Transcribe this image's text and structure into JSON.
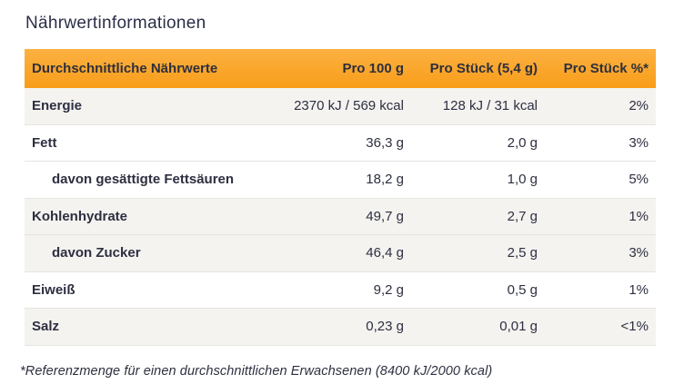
{
  "page_title": "Nährwertinformationen",
  "table": {
    "header": {
      "label": "Durchschnittliche Nährwerte",
      "per_100": "Pro 100 g",
      "per_piece": "Pro Stück (5,4 g)",
      "per_piece_pct": "Pro Stück %*"
    },
    "rows": [
      {
        "label": "Energie",
        "indent": false,
        "shaded": true,
        "per_100": "2370 kJ / 569 kcal",
        "per_piece": "128 kJ / 31 kcal",
        "pct": "2%"
      },
      {
        "label": "Fett",
        "indent": false,
        "shaded": false,
        "per_100": "36,3 g",
        "per_piece": "2,0 g",
        "pct": "3%"
      },
      {
        "label": "davon gesättigte Fettsäuren",
        "indent": true,
        "shaded": false,
        "per_100": "18,2 g",
        "per_piece": "1,0 g",
        "pct": "5%"
      },
      {
        "label": "Kohlenhydrate",
        "indent": false,
        "shaded": true,
        "per_100": "49,7 g",
        "per_piece": "2,7 g",
        "pct": "1%"
      },
      {
        "label": "davon Zucker",
        "indent": true,
        "shaded": true,
        "per_100": "46,4 g",
        "per_piece": "2,5 g",
        "pct": "3%"
      },
      {
        "label": "Eiweiß",
        "indent": false,
        "shaded": false,
        "per_100": "9,2 g",
        "per_piece": "0,5 g",
        "pct": "1%"
      },
      {
        "label": "Salz",
        "indent": false,
        "shaded": true,
        "per_100": "0,23 g",
        "per_piece": "0,01 g",
        "pct": "<1%"
      }
    ]
  },
  "footnote": "*Referenzmenge für einen durchschnittlichen Erwachsenen (8400 kJ/2000 kcal)",
  "colors": {
    "header_gradient_top": "#fcb142",
    "header_gradient_bottom": "#f89d19",
    "row_shaded_bg": "#f4f3f0",
    "row_separator": "#e7e4e0",
    "text": "#2d2f40",
    "title_text": "#2b2e48"
  }
}
